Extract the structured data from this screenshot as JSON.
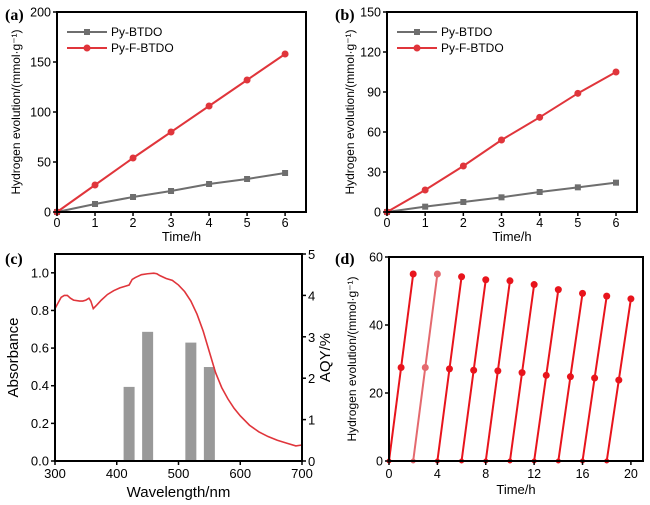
{
  "chart_data": [
    {
      "panel": "(a)",
      "type": "line",
      "title": "",
      "xlabel": "Time/h",
      "ylabel": "Hydrogen evolution/(mmol·g⁻¹)",
      "xlim": [
        0,
        6.55
      ],
      "ylim": [
        0,
        200
      ],
      "xticks": [
        0,
        1,
        2,
        3,
        4,
        5,
        6
      ],
      "yticks": [
        0,
        50,
        100,
        150,
        200
      ],
      "grid": false,
      "legend_position": "top-left",
      "x": [
        0,
        1,
        2,
        3,
        4,
        5,
        6
      ],
      "series": [
        {
          "name": "Py-BTDO",
          "color": "#6e6e6e",
          "marker": "square",
          "values": [
            0,
            8,
            15,
            21,
            28,
            33,
            39
          ]
        },
        {
          "name": "Py-F-BTDO",
          "color": "#e0353b",
          "marker": "circle",
          "values": [
            0,
            27,
            54,
            80,
            106,
            132,
            158
          ]
        }
      ]
    },
    {
      "panel": "(b)",
      "type": "line",
      "title": "",
      "xlabel": "Time/h",
      "ylabel": "Hydrogen evolution/(mmol·g⁻¹)",
      "xlim": [
        0,
        6.55
      ],
      "ylim": [
        0,
        150
      ],
      "xticks": [
        0,
        1,
        2,
        3,
        4,
        5,
        6
      ],
      "yticks": [
        0,
        30,
        60,
        90,
        120,
        150
      ],
      "grid": false,
      "legend_position": "top-left",
      "x": [
        0,
        1,
        2,
        3,
        4,
        5,
        6
      ],
      "series": [
        {
          "name": "Py-BTDO",
          "color": "#6e6e6e",
          "marker": "square",
          "values": [
            0,
            4,
            7.5,
            11,
            15,
            18.5,
            22
          ]
        },
        {
          "name": "Py-F-BTDO",
          "color": "#e0353b",
          "marker": "circle",
          "values": [
            0,
            16.5,
            34.5,
            54,
            71,
            89,
            105
          ]
        }
      ]
    },
    {
      "panel": "(c)",
      "type": "line",
      "title": "",
      "xlabel": "Wavelength/nm",
      "ylabel": "Absorbance",
      "ylabel_right": "AQY/%",
      "xlim": [
        300,
        700
      ],
      "ylim": [
        0,
        1.1
      ],
      "ylim_right": [
        0,
        5
      ],
      "xticks": [
        300,
        400,
        500,
        600,
        700
      ],
      "yticks": [
        0.0,
        0.2,
        0.4,
        0.6,
        0.8,
        1.0
      ],
      "yticks_right": [
        0,
        1,
        2,
        3,
        4,
        5
      ],
      "ytick_labels": [
        "0.0",
        "0.2",
        "0.4",
        "0.6",
        "0.8",
        "1.0"
      ],
      "grid": false,
      "series": [
        {
          "name": "Absorbance",
          "color": "#e0353b",
          "axis": "left",
          "x": [
            300,
            305,
            310,
            315,
            320,
            325,
            330,
            340,
            345,
            350,
            355,
            358,
            362,
            368,
            375,
            385,
            395,
            405,
            415,
            420,
            425,
            430,
            440,
            450,
            460,
            465,
            470,
            480,
            490,
            500,
            510,
            520,
            530,
            540,
            550,
            560,
            570,
            580,
            590,
            600,
            615,
            630,
            645,
            660,
            675,
            690,
            700
          ],
          "values": [
            0.81,
            0.84,
            0.87,
            0.88,
            0.88,
            0.865,
            0.855,
            0.85,
            0.85,
            0.855,
            0.865,
            0.85,
            0.81,
            0.83,
            0.855,
            0.885,
            0.905,
            0.92,
            0.93,
            0.935,
            0.965,
            0.975,
            0.99,
            0.995,
            0.998,
            0.995,
            0.985,
            0.97,
            0.96,
            0.935,
            0.9,
            0.85,
            0.78,
            0.69,
            0.58,
            0.47,
            0.39,
            0.33,
            0.28,
            0.24,
            0.19,
            0.155,
            0.13,
            0.11,
            0.095,
            0.08,
            0.085
          ]
        },
        {
          "name": "AQY",
          "type": "bar",
          "color": "#999999",
          "axis": "right",
          "x": [
            420,
            450,
            520,
            550
          ],
          "values": [
            1.79,
            3.12,
            2.86,
            2.27
          ]
        }
      ]
    },
    {
      "panel": "(d)",
      "type": "line",
      "title": "",
      "xlabel": "Time/h",
      "ylabel": "Hydrogen evolution/(mmol·g⁻¹)",
      "xlim": [
        0,
        21
      ],
      "ylim": [
        0,
        60
      ],
      "xticks": [
        0,
        4,
        8,
        12,
        16,
        20
      ],
      "yticks": [
        0,
        20,
        40,
        60
      ],
      "grid": false,
      "series": [
        {
          "name": "Cycling",
          "color": "#e8141c",
          "cycles": [
            {
              "x": [
                0,
                1,
                2
              ],
              "values": [
                0,
                27.5,
                55
              ]
            },
            {
              "x": [
                2,
                3,
                4
              ],
              "values": [
                0,
                27.5,
                55
              ],
              "faded": true
            },
            {
              "x": [
                4,
                5,
                6
              ],
              "values": [
                0,
                27.1,
                54.2
              ]
            },
            {
              "x": [
                6,
                7,
                8
              ],
              "values": [
                0,
                26.7,
                53.3
              ]
            },
            {
              "x": [
                8,
                9,
                10
              ],
              "values": [
                0,
                26.5,
                53
              ]
            },
            {
              "x": [
                10,
                11,
                12
              ],
              "values": [
                0,
                26,
                51.9
              ]
            },
            {
              "x": [
                12,
                13,
                14
              ],
              "values": [
                0,
                25.2,
                50.4
              ]
            },
            {
              "x": [
                14,
                15,
                16
              ],
              "values": [
                0,
                24.8,
                49.3
              ]
            },
            {
              "x": [
                16,
                17,
                18
              ],
              "values": [
                0,
                24.4,
                48.5
              ]
            },
            {
              "x": [
                18,
                19,
                20
              ],
              "values": [
                0,
                23.8,
                47.7
              ]
            }
          ]
        }
      ]
    }
  ]
}
